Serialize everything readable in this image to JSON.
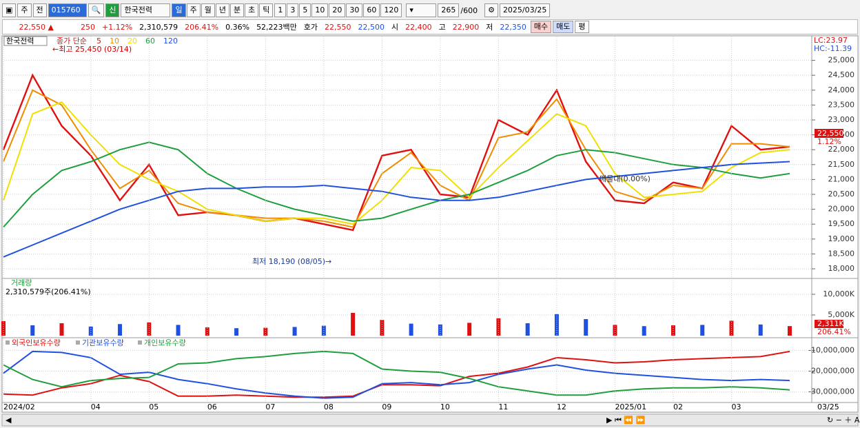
{
  "toolbar": {
    "period": "주",
    "prev": "전",
    "code": "015760",
    "badge": "신",
    "name": "한국전력",
    "units": [
      "일",
      "주",
      "월",
      "년",
      "분",
      "초",
      "틱"
    ],
    "intervals": [
      "1",
      "3",
      "5",
      "10",
      "20",
      "30",
      "60",
      "120"
    ],
    "count": "265",
    "max": "/600",
    "date": "2025/03/25"
  },
  "quote": {
    "price": "22,550 ▲",
    "change": "250",
    "rate": "+1.12%",
    "volume": "2,310,579",
    "volume_ratio": "206.41%",
    "turnover": "0.36%",
    "amount": "52,223백만",
    "ask_label": "호가",
    "ask": "22,550",
    "bid": "22,500",
    "open_label": "시",
    "open": "22,400",
    "high_label": "고",
    "high": "22,900",
    "low_label": "저",
    "low": "22,350",
    "buy": "매수",
    "sell": "매도",
    "avg": "평"
  },
  "chart_data": [
    {
      "type": "line",
      "title": "한국전력",
      "subtitle": "종가 단순",
      "categories": [
        "2024/02",
        null,
        null,
        "04",
        null,
        "05",
        null,
        "06",
        null,
        "07",
        null,
        "08",
        null,
        "09",
        null,
        "10",
        null,
        "11",
        null,
        "12",
        null,
        "2025/01",
        null,
        "02",
        null,
        "03",
        null,
        null
      ],
      "last_date": "03/25",
      "lc": "LC:23.97",
      "hc": "HC:-11.39",
      "last_label": "22,550",
      "last_change": "1.12%",
      "annotations": [
        "←최고 25,450 (03/14)",
        "최저 18,190 (08/05)→",
        "매물대(0.00%)"
      ],
      "ylim": [
        17700,
        25800
      ],
      "yticks": [
        {
          "value": 18000,
          "label": "18,000"
        },
        {
          "value": 18500,
          "label": "18,500"
        },
        {
          "value": 19000,
          "label": "19,000"
        },
        {
          "value": 19500,
          "label": "19,500"
        },
        {
          "value": 20000,
          "label": "20,000"
        },
        {
          "value": 20500,
          "label": "20,500"
        },
        {
          "value": 21000,
          "label": "21,000"
        },
        {
          "value": 21500,
          "label": "21,500"
        },
        {
          "value": 22000,
          "label": "22,000"
        },
        {
          "value": 22500,
          "label": "22,500"
        },
        {
          "value": 23000,
          "label": "23,000"
        },
        {
          "value": 23500,
          "label": "23,500"
        },
        {
          "value": 24000,
          "label": "24,000"
        },
        {
          "value": 24500,
          "label": "24,500"
        },
        {
          "value": 25000,
          "label": "25,000"
        }
      ],
      "grid": true,
      "series": [
        {
          "name": "5",
          "color": "#e01010",
          "values": [
            22000,
            24500,
            22800,
            21800,
            20300,
            21500,
            19800,
            19900,
            19800,
            19600,
            19700,
            19500,
            19300,
            21800,
            22000,
            20500,
            20400,
            23000,
            22500,
            24000,
            21600,
            20300,
            20200,
            20900,
            20700,
            22800,
            22000,
            22100
          ]
        },
        {
          "name": "10",
          "color": "#f08c00",
          "values": [
            21600,
            24000,
            23500,
            22000,
            20700,
            21300,
            20200,
            19900,
            19800,
            19700,
            19700,
            19600,
            19400,
            21200,
            21900,
            20800,
            20300,
            22400,
            22600,
            23700,
            22000,
            20600,
            20300,
            20800,
            20700,
            22200,
            22200,
            22100
          ]
        },
        {
          "name": "20",
          "color": "#f0e000",
          "values": [
            20300,
            23200,
            23600,
            22500,
            21500,
            21000,
            20600,
            20000,
            19800,
            19600,
            19700,
            19700,
            19500,
            20300,
            21400,
            21300,
            20400,
            21400,
            22300,
            23200,
            22800,
            21200,
            20400,
            20500,
            20600,
            21400,
            21900,
            22000
          ]
        },
        {
          "name": "60",
          "color": "#1e9e3c",
          "values": [
            19400,
            20500,
            21300,
            21600,
            22000,
            22250,
            22000,
            21200,
            20700,
            20300,
            20000,
            19800,
            19600,
            19700,
            20000,
            20300,
            20500,
            20900,
            21300,
            21800,
            22000,
            21900,
            21700,
            21500,
            21400,
            21200,
            21050,
            21200
          ]
        },
        {
          "name": "120",
          "color": "#2050e0",
          "values": [
            18400,
            18800,
            19200,
            19600,
            20000,
            20300,
            20600,
            20700,
            20700,
            20750,
            20750,
            20800,
            20700,
            20600,
            20400,
            20300,
            20300,
            20400,
            20600,
            20800,
            21000,
            21100,
            21200,
            21300,
            21400,
            21500,
            21550,
            21600
          ]
        }
      ]
    },
    {
      "type": "bar",
      "title": "거래량",
      "subtitle": "2,310,579주(206.41%)",
      "last_label": "2,311K",
      "last_ratio": "206.41%",
      "ylim": [
        0,
        13500
      ],
      "yticks": [
        {
          "value": 5000,
          "label": "5,000K"
        },
        {
          "value": 10000,
          "label": "10,000K"
        }
      ],
      "values": [
        3500,
        2500,
        3000,
        2200,
        2800,
        3200,
        2600,
        2000,
        1800,
        1900,
        2100,
        2400,
        5500,
        3800,
        2900,
        2700,
        3100,
        4200,
        3000,
        5200,
        4000,
        2600,
        2300,
        2500,
        2600,
        3600,
        2700,
        2311
      ],
      "colors": [
        "#e01010",
        "#2050e0",
        "#e01010",
        "#2050e0",
        "#2050e0",
        "#e01010",
        "#2050e0",
        "#e01010",
        "#2050e0",
        "#e01010",
        "#2050e0",
        "#2050e0",
        "#e01010",
        "#e01010",
        "#2050e0",
        "#2050e0",
        "#e01010",
        "#e01010",
        "#2050e0",
        "#2050e0",
        "#2050e0",
        "#e01010",
        "#2050e0",
        "#e01010",
        "#2050e0",
        "#e01010",
        "#2050e0",
        "#e01010"
      ]
    },
    {
      "type": "line",
      "ylim": [
        -34400000,
        -5900000
      ],
      "yticks": [
        {
          "value": -10000000,
          "label": "-10,000,000"
        },
        {
          "value": -20000000,
          "label": "-20,000,000"
        },
        {
          "value": -30000000,
          "label": "-30,000,000"
        }
      ],
      "series": [
        {
          "name": "외국인보유수량",
          "color": "#e01010",
          "values": [
            -31000000,
            -31500000,
            -28000000,
            -26000000,
            -22000000,
            -25000000,
            -32000000,
            -32000000,
            -31500000,
            -32000000,
            -32500000,
            -32500000,
            -32000000,
            -26500000,
            -26500000,
            -27000000,
            -22500000,
            -21000000,
            -18000000,
            -13500000,
            -14500000,
            -16000000,
            -15500000,
            -14500000,
            -14000000,
            -13500000,
            -13000000,
            -10500000
          ]
        },
        {
          "name": "기관보유수량",
          "color": "#2050e0",
          "values": [
            -21000000,
            -10500000,
            -11000000,
            -13500000,
            -21500000,
            -20500000,
            -24000000,
            -26000000,
            -28500000,
            -30500000,
            -32000000,
            -33000000,
            -32500000,
            -26000000,
            -25500000,
            -26500000,
            -25500000,
            -21500000,
            -19000000,
            -17000000,
            -19500000,
            -21000000,
            -22000000,
            -23000000,
            -24000000,
            -24500000,
            -24000000,
            -24500000
          ]
        },
        {
          "name": "개인보유수량",
          "color": "#1e9e3c",
          "values": [
            -17000000,
            -24000000,
            -27500000,
            -24500000,
            -23500000,
            -23000000,
            -16500000,
            -16000000,
            -14000000,
            -13000000,
            -11500000,
            -10500000,
            -11500000,
            -19000000,
            -20000000,
            -20500000,
            -23500000,
            -27500000,
            -29500000,
            -31500000,
            -31500000,
            -29500000,
            -28500000,
            -28000000,
            -28000000,
            -27500000,
            -28000000,
            -29000000
          ]
        }
      ]
    }
  ]
}
